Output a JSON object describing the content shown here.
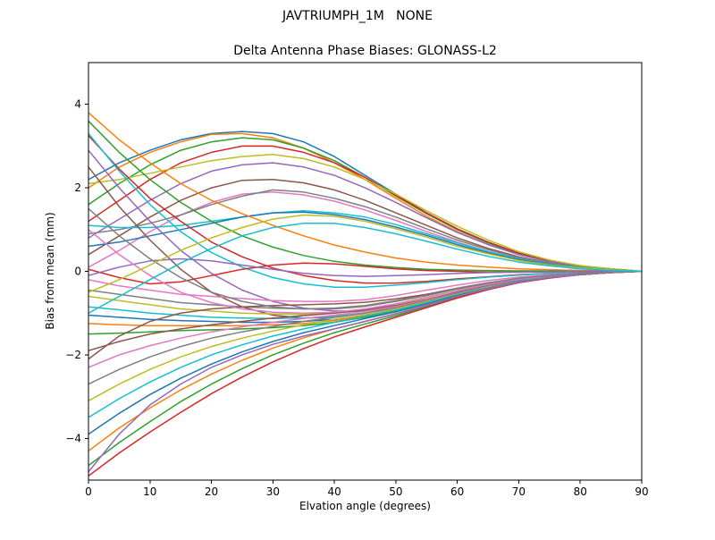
{
  "chart_data": {
    "type": "line",
    "suptitle": "JAVTRIUMPH_1M   NONE",
    "title": "Delta Antenna Phase Biases: GLONASS-L2",
    "xlabel": "Elvation angle (degrees)",
    "ylabel": "Bias from mean (mm)",
    "xlim": [
      0,
      90
    ],
    "ylim": [
      -5,
      5
    ],
    "xticks": [
      0,
      10,
      20,
      30,
      40,
      50,
      60,
      70,
      80,
      90
    ],
    "yticks": [
      -4,
      -2,
      0,
      2,
      4
    ],
    "grid": false,
    "legend": null,
    "axes_color": "#000000",
    "palette": [
      "#1f77b4",
      "#ff7f0e",
      "#2ca02c",
      "#d62728",
      "#9467bd",
      "#8c564b",
      "#e377c2",
      "#7f7f7f",
      "#bcbd22",
      "#17becf"
    ],
    "x": [
      0,
      5,
      10,
      15,
      20,
      25,
      30,
      35,
      40,
      45,
      50,
      55,
      60,
      65,
      70,
      75,
      80,
      85,
      90
    ],
    "series": [
      {
        "color": "#1f77b4",
        "y": [
          2.2,
          2.6,
          2.9,
          3.15,
          3.3,
          3.35,
          3.3,
          3.1,
          2.75,
          2.3,
          1.85,
          1.4,
          1.0,
          0.68,
          0.42,
          0.25,
          0.13,
          0.06,
          0
        ]
      },
      {
        "color": "#ff7f0e",
        "y": [
          2.0,
          2.5,
          2.85,
          3.1,
          3.28,
          3.3,
          3.2,
          2.95,
          2.6,
          2.2,
          1.75,
          1.32,
          0.95,
          0.64,
          0.4,
          0.23,
          0.12,
          0.05,
          0
        ]
      },
      {
        "color": "#2ca02c",
        "y": [
          1.6,
          2.1,
          2.55,
          2.9,
          3.1,
          3.2,
          3.15,
          2.95,
          2.65,
          2.25,
          1.8,
          1.38,
          1.0,
          0.68,
          0.43,
          0.25,
          0.13,
          0.06,
          0
        ]
      },
      {
        "color": "#d62728",
        "y": [
          1.2,
          1.7,
          2.2,
          2.6,
          2.85,
          3.0,
          3.0,
          2.85,
          2.6,
          2.25,
          1.82,
          1.4,
          1.02,
          0.7,
          0.44,
          0.26,
          0.13,
          0.06,
          0
        ]
      },
      {
        "color": "#9467bd",
        "y": [
          0.8,
          1.25,
          1.7,
          2.1,
          2.4,
          2.55,
          2.6,
          2.5,
          2.3,
          2.0,
          1.65,
          1.28,
          0.93,
          0.64,
          0.4,
          0.23,
          0.12,
          0.05,
          0
        ]
      },
      {
        "color": "#8c564b",
        "y": [
          0.4,
          0.85,
          1.3,
          1.7,
          2.0,
          2.18,
          2.2,
          2.12,
          1.95,
          1.7,
          1.4,
          1.1,
          0.8,
          0.55,
          0.35,
          0.2,
          0.1,
          0.04,
          0
        ]
      },
      {
        "color": "#e377c2",
        "y": [
          0.1,
          0.5,
          0.95,
          1.35,
          1.65,
          1.85,
          1.9,
          1.83,
          1.68,
          1.47,
          1.22,
          0.95,
          0.7,
          0.48,
          0.3,
          0.18,
          0.09,
          0.04,
          0
        ]
      },
      {
        "color": "#7f7f7f",
        "y": [
          0.9,
          1.0,
          1.15,
          1.35,
          1.6,
          1.8,
          1.95,
          1.9,
          1.75,
          1.55,
          1.3,
          1.02,
          0.75,
          0.52,
          0.33,
          0.19,
          0.1,
          0.04,
          0
        ]
      },
      {
        "color": "#bcbd22",
        "y": [
          2.1,
          2.2,
          2.35,
          2.5,
          2.65,
          2.75,
          2.8,
          2.7,
          2.5,
          2.2,
          1.85,
          1.45,
          1.08,
          0.75,
          0.47,
          0.27,
          0.14,
          0.06,
          0
        ]
      },
      {
        "color": "#17becf",
        "y": [
          1.1,
          1.05,
          1.05,
          1.1,
          1.2,
          1.3,
          1.4,
          1.45,
          1.4,
          1.3,
          1.12,
          0.9,
          0.68,
          0.47,
          0.3,
          0.17,
          0.09,
          0.04,
          0
        ]
      },
      {
        "color": "#1f77b4",
        "y": [
          0.6,
          0.7,
          0.85,
          1.0,
          1.15,
          1.3,
          1.4,
          1.42,
          1.36,
          1.24,
          1.06,
          0.86,
          0.64,
          0.44,
          0.28,
          0.16,
          0.08,
          0.03,
          0
        ]
      },
      {
        "color": "#ff7f0e",
        "y": [
          3.8,
          3.15,
          2.6,
          2.1,
          1.7,
          1.38,
          1.1,
          0.85,
          0.63,
          0.46,
          0.32,
          0.22,
          0.15,
          0.1,
          0.06,
          0.04,
          0.02,
          0.01,
          0
        ]
      },
      {
        "color": "#2ca02c",
        "y": [
          3.6,
          2.85,
          2.2,
          1.65,
          1.2,
          0.85,
          0.58,
          0.38,
          0.24,
          0.15,
          0.09,
          0.05,
          0.03,
          0.02,
          0.01,
          0.01,
          0,
          0,
          0
        ]
      },
      {
        "color": "#d62728",
        "y": [
          3.25,
          2.45,
          1.75,
          1.2,
          0.7,
          0.35,
          0.08,
          -0.1,
          -0.22,
          -0.28,
          -0.28,
          -0.24,
          -0.18,
          -0.13,
          -0.08,
          -0.05,
          -0.03,
          -0.01,
          0
        ]
      },
      {
        "color": "#9467bd",
        "y": [
          2.9,
          2.0,
          1.2,
          0.5,
          -0.05,
          -0.45,
          -0.72,
          -0.88,
          -0.95,
          -0.95,
          -0.85,
          -0.7,
          -0.53,
          -0.37,
          -0.24,
          -0.14,
          -0.07,
          -0.03,
          0
        ]
      },
      {
        "color": "#8c564b",
        "y": [
          2.5,
          1.55,
          0.75,
          0.05,
          -0.5,
          -0.85,
          -1.05,
          -1.12,
          -1.1,
          -1.0,
          -0.86,
          -0.68,
          -0.5,
          -0.35,
          -0.22,
          -0.13,
          -0.06,
          -0.02,
          0
        ]
      },
      {
        "color": "#17becf",
        "y": [
          3.3,
          2.4,
          1.6,
          0.95,
          0.45,
          0.1,
          -0.15,
          -0.3,
          -0.38,
          -0.38,
          -0.33,
          -0.27,
          -0.2,
          -0.14,
          -0.09,
          -0.05,
          -0.03,
          -0.01,
          0
        ]
      },
      {
        "color": "#e377c2",
        "y": [
          -0.2,
          -0.35,
          -0.45,
          -0.55,
          -0.6,
          -0.65,
          -0.7,
          -0.72,
          -0.72,
          -0.68,
          -0.58,
          -0.45,
          -0.33,
          -0.22,
          -0.14,
          -0.08,
          -0.04,
          -0.02,
          0
        ]
      },
      {
        "color": "#7f7f7f",
        "y": [
          -0.45,
          -0.55,
          -0.65,
          -0.75,
          -0.8,
          -0.85,
          -0.88,
          -0.9,
          -0.88,
          -0.82,
          -0.7,
          -0.55,
          -0.4,
          -0.27,
          -0.17,
          -0.1,
          -0.05,
          -0.02,
          0
        ]
      },
      {
        "color": "#bcbd22",
        "y": [
          -0.6,
          -0.7,
          -0.8,
          -0.9,
          -0.95,
          -1.0,
          -1.02,
          -1.03,
          -1.0,
          -0.93,
          -0.8,
          -0.63,
          -0.46,
          -0.31,
          -0.19,
          -0.11,
          -0.05,
          -0.02,
          0
        ]
      },
      {
        "color": "#17becf",
        "y": [
          -0.85,
          -0.92,
          -1.0,
          -1.05,
          -1.1,
          -1.12,
          -1.13,
          -1.12,
          -1.08,
          -1.0,
          -0.86,
          -0.68,
          -0.5,
          -0.34,
          -0.21,
          -0.12,
          -0.06,
          -0.02,
          0
        ]
      },
      {
        "color": "#1f77b4",
        "y": [
          -1.05,
          -1.1,
          -1.15,
          -1.18,
          -1.2,
          -1.22,
          -1.22,
          -1.2,
          -1.15,
          -1.05,
          -0.9,
          -0.72,
          -0.53,
          -0.36,
          -0.22,
          -0.13,
          -0.06,
          -0.02,
          0
        ]
      },
      {
        "color": "#ff7f0e",
        "y": [
          -1.25,
          -1.28,
          -1.3,
          -1.3,
          -1.3,
          -1.3,
          -1.28,
          -1.25,
          -1.18,
          -1.08,
          -0.93,
          -0.74,
          -0.55,
          -0.37,
          -0.23,
          -0.13,
          -0.07,
          -0.03,
          0
        ]
      },
      {
        "color": "#2ca02c",
        "y": [
          -1.5,
          -1.48,
          -1.45,
          -1.42,
          -1.4,
          -1.38,
          -1.35,
          -1.3,
          -1.22,
          -1.1,
          -0.95,
          -0.76,
          -0.56,
          -0.38,
          -0.24,
          -0.14,
          -0.07,
          -0.03,
          0
        ]
      },
      {
        "color": "#d62728",
        "y": [
          0.05,
          -0.15,
          -0.3,
          -0.25,
          -0.1,
          0.05,
          0.15,
          0.2,
          0.18,
          0.12,
          0.06,
          0.02,
          0,
          -0.02,
          -0.02,
          -0.01,
          0,
          0,
          0
        ]
      },
      {
        "color": "#9467bd",
        "y": [
          -0.1,
          0.1,
          0.25,
          0.3,
          0.25,
          0.15,
          0.05,
          -0.05,
          -0.1,
          -0.12,
          -0.1,
          -0.08,
          -0.05,
          -0.03,
          -0.02,
          -0.01,
          0,
          0,
          0
        ]
      },
      {
        "color": "#8c564b",
        "y": [
          -1.9,
          -1.68,
          -1.5,
          -1.38,
          -1.28,
          -1.2,
          -1.12,
          -1.06,
          -1.0,
          -0.93,
          -0.82,
          -0.67,
          -0.5,
          -0.35,
          -0.22,
          -0.13,
          -0.06,
          -0.02,
          0
        ]
      },
      {
        "color": "#e377c2",
        "y": [
          -2.3,
          -2.0,
          -1.78,
          -1.6,
          -1.45,
          -1.33,
          -1.22,
          -1.13,
          -1.05,
          -0.96,
          -0.84,
          -0.69,
          -0.52,
          -0.36,
          -0.23,
          -0.13,
          -0.07,
          -0.03,
          0
        ]
      },
      {
        "color": "#7f7f7f",
        "y": [
          -2.7,
          -2.35,
          -2.05,
          -1.8,
          -1.6,
          -1.45,
          -1.32,
          -1.2,
          -1.1,
          -1.0,
          -0.87,
          -0.71,
          -0.53,
          -0.37,
          -0.23,
          -0.13,
          -0.07,
          -0.03,
          0
        ]
      },
      {
        "color": "#bcbd22",
        "y": [
          -3.1,
          -2.7,
          -2.35,
          -2.05,
          -1.8,
          -1.6,
          -1.43,
          -1.28,
          -1.15,
          -1.04,
          -0.9,
          -0.73,
          -0.55,
          -0.38,
          -0.24,
          -0.14,
          -0.07,
          -0.03,
          0
        ]
      },
      {
        "color": "#17becf",
        "y": [
          -3.5,
          -3.05,
          -2.65,
          -2.3,
          -2.0,
          -1.76,
          -1.55,
          -1.38,
          -1.22,
          -1.08,
          -0.93,
          -0.75,
          -0.56,
          -0.39,
          -0.24,
          -0.14,
          -0.07,
          -0.03,
          0
        ]
      },
      {
        "color": "#1f77b4",
        "y": [
          -3.9,
          -3.4,
          -2.95,
          -2.56,
          -2.22,
          -1.93,
          -1.68,
          -1.47,
          -1.3,
          -1.13,
          -0.97,
          -0.78,
          -0.58,
          -0.4,
          -0.25,
          -0.15,
          -0.08,
          -0.03,
          0
        ]
      },
      {
        "color": "#ff7f0e",
        "y": [
          -4.3,
          -3.75,
          -3.27,
          -2.84,
          -2.46,
          -2.13,
          -1.84,
          -1.59,
          -1.38,
          -1.2,
          -1.01,
          -0.81,
          -0.6,
          -0.41,
          -0.26,
          -0.15,
          -0.08,
          -0.03,
          0
        ]
      },
      {
        "color": "#2ca02c",
        "y": [
          -4.65,
          -4.1,
          -3.6,
          -3.12,
          -2.7,
          -2.33,
          -2.0,
          -1.72,
          -1.47,
          -1.26,
          -1.06,
          -0.84,
          -0.62,
          -0.43,
          -0.27,
          -0.16,
          -0.08,
          -0.03,
          0
        ]
      },
      {
        "color": "#d62728",
        "y": [
          -4.9,
          -4.35,
          -3.85,
          -3.38,
          -2.93,
          -2.53,
          -2.17,
          -1.85,
          -1.57,
          -1.33,
          -1.1,
          -0.87,
          -0.64,
          -0.44,
          -0.27,
          -0.16,
          -0.08,
          -0.03,
          0
        ]
      },
      {
        "color": "#9467bd",
        "y": [
          -4.8,
          -3.9,
          -3.2,
          -2.7,
          -2.3,
          -2.0,
          -1.75,
          -1.55,
          -1.38,
          -1.2,
          -1.02,
          -0.82,
          -0.6,
          -0.42,
          -0.26,
          -0.15,
          -0.08,
          -0.03,
          0
        ]
      },
      {
        "color": "#8c564b",
        "y": [
          -2.1,
          -1.55,
          -1.2,
          -1.0,
          -0.9,
          -0.85,
          -0.82,
          -0.8,
          -0.78,
          -0.74,
          -0.66,
          -0.55,
          -0.42,
          -0.29,
          -0.18,
          -0.1,
          -0.05,
          -0.02,
          0
        ]
      },
      {
        "color": "#e377c2",
        "y": [
          1.0,
          0.4,
          -0.1,
          -0.5,
          -0.75,
          -0.9,
          -0.98,
          -1.0,
          -0.98,
          -0.9,
          -0.78,
          -0.62,
          -0.46,
          -0.31,
          -0.19,
          -0.11,
          -0.05,
          -0.02,
          0
        ]
      },
      {
        "color": "#7f7f7f",
        "y": [
          1.5,
          0.85,
          0.3,
          -0.15,
          -0.5,
          -0.72,
          -0.85,
          -0.9,
          -0.9,
          -0.84,
          -0.72,
          -0.58,
          -0.42,
          -0.28,
          -0.17,
          -0.1,
          -0.05,
          -0.02,
          0
        ]
      },
      {
        "color": "#bcbd22",
        "y": [
          -0.5,
          -0.2,
          0.15,
          0.5,
          0.8,
          1.05,
          1.25,
          1.35,
          1.32,
          1.2,
          1.02,
          0.82,
          0.6,
          0.42,
          0.26,
          0.15,
          0.08,
          0.03,
          0
        ]
      },
      {
        "color": "#17becf",
        "y": [
          -1.0,
          -0.6,
          -0.2,
          0.2,
          0.55,
          0.85,
          1.05,
          1.15,
          1.15,
          1.05,
          0.9,
          0.72,
          0.53,
          0.36,
          0.22,
          0.13,
          0.06,
          0.02,
          0
        ]
      }
    ]
  }
}
